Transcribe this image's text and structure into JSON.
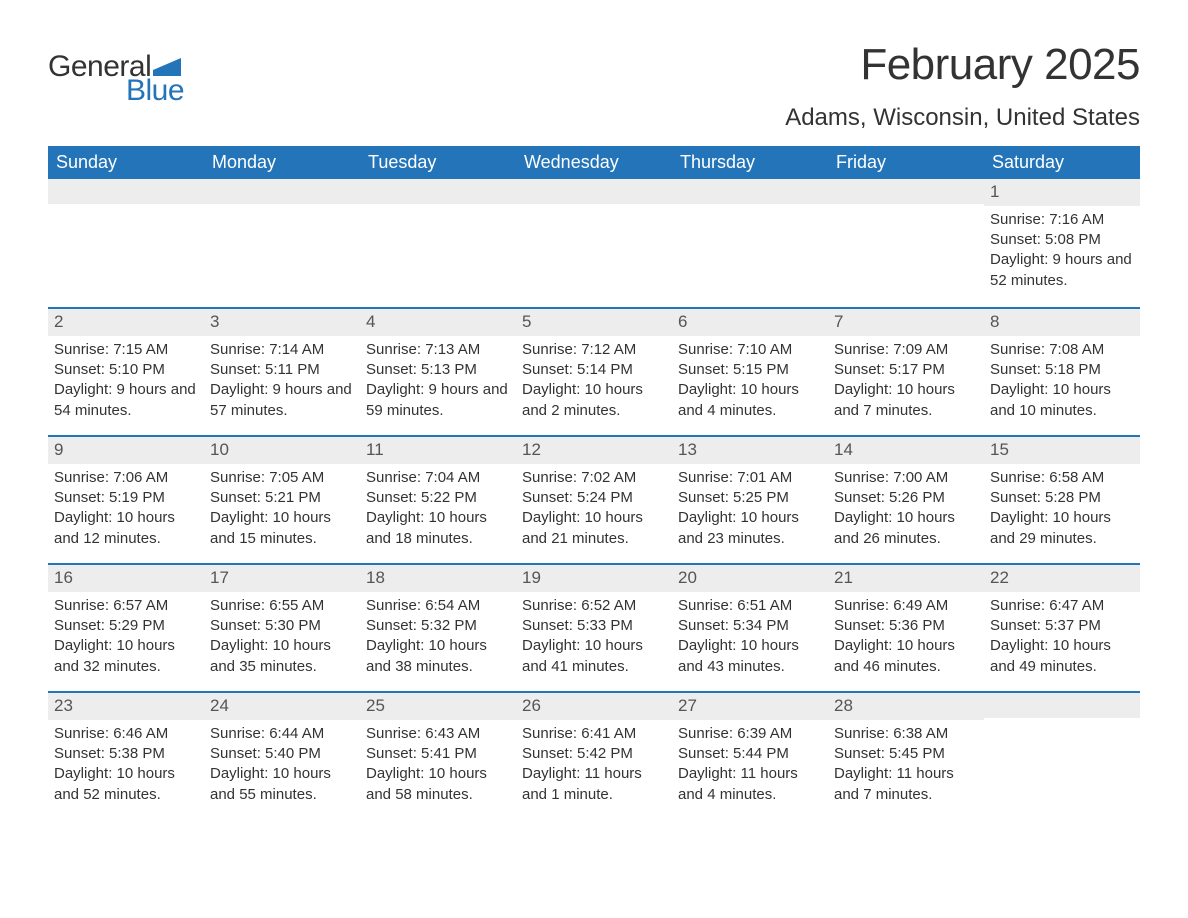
{
  "logo": {
    "text_general": "General",
    "text_blue": "Blue",
    "flag_color": "#2374b8"
  },
  "title": "February 2025",
  "location": "Adams, Wisconsin, United States",
  "colors": {
    "header_bg": "#2374b8",
    "header_text": "#ffffff",
    "row_border": "#2374b8",
    "daynum_bg": "#ededed",
    "text": "#333333"
  },
  "weekdays": [
    "Sunday",
    "Monday",
    "Tuesday",
    "Wednesday",
    "Thursday",
    "Friday",
    "Saturday"
  ],
  "weeks": [
    [
      null,
      null,
      null,
      null,
      null,
      null,
      {
        "n": "1",
        "sunrise": "7:16 AM",
        "sunset": "5:08 PM",
        "daylight": "9 hours and 52 minutes."
      }
    ],
    [
      {
        "n": "2",
        "sunrise": "7:15 AM",
        "sunset": "5:10 PM",
        "daylight": "9 hours and 54 minutes."
      },
      {
        "n": "3",
        "sunrise": "7:14 AM",
        "sunset": "5:11 PM",
        "daylight": "9 hours and 57 minutes."
      },
      {
        "n": "4",
        "sunrise": "7:13 AM",
        "sunset": "5:13 PM",
        "daylight": "9 hours and 59 minutes."
      },
      {
        "n": "5",
        "sunrise": "7:12 AM",
        "sunset": "5:14 PM",
        "daylight": "10 hours and 2 minutes."
      },
      {
        "n": "6",
        "sunrise": "7:10 AM",
        "sunset": "5:15 PM",
        "daylight": "10 hours and 4 minutes."
      },
      {
        "n": "7",
        "sunrise": "7:09 AM",
        "sunset": "5:17 PM",
        "daylight": "10 hours and 7 minutes."
      },
      {
        "n": "8",
        "sunrise": "7:08 AM",
        "sunset": "5:18 PM",
        "daylight": "10 hours and 10 minutes."
      }
    ],
    [
      {
        "n": "9",
        "sunrise": "7:06 AM",
        "sunset": "5:19 PM",
        "daylight": "10 hours and 12 minutes."
      },
      {
        "n": "10",
        "sunrise": "7:05 AM",
        "sunset": "5:21 PM",
        "daylight": "10 hours and 15 minutes."
      },
      {
        "n": "11",
        "sunrise": "7:04 AM",
        "sunset": "5:22 PM",
        "daylight": "10 hours and 18 minutes."
      },
      {
        "n": "12",
        "sunrise": "7:02 AM",
        "sunset": "5:24 PM",
        "daylight": "10 hours and 21 minutes."
      },
      {
        "n": "13",
        "sunrise": "7:01 AM",
        "sunset": "5:25 PM",
        "daylight": "10 hours and 23 minutes."
      },
      {
        "n": "14",
        "sunrise": "7:00 AM",
        "sunset": "5:26 PM",
        "daylight": "10 hours and 26 minutes."
      },
      {
        "n": "15",
        "sunrise": "6:58 AM",
        "sunset": "5:28 PM",
        "daylight": "10 hours and 29 minutes."
      }
    ],
    [
      {
        "n": "16",
        "sunrise": "6:57 AM",
        "sunset": "5:29 PM",
        "daylight": "10 hours and 32 minutes."
      },
      {
        "n": "17",
        "sunrise": "6:55 AM",
        "sunset": "5:30 PM",
        "daylight": "10 hours and 35 minutes."
      },
      {
        "n": "18",
        "sunrise": "6:54 AM",
        "sunset": "5:32 PM",
        "daylight": "10 hours and 38 minutes."
      },
      {
        "n": "19",
        "sunrise": "6:52 AM",
        "sunset": "5:33 PM",
        "daylight": "10 hours and 41 minutes."
      },
      {
        "n": "20",
        "sunrise": "6:51 AM",
        "sunset": "5:34 PM",
        "daylight": "10 hours and 43 minutes."
      },
      {
        "n": "21",
        "sunrise": "6:49 AM",
        "sunset": "5:36 PM",
        "daylight": "10 hours and 46 minutes."
      },
      {
        "n": "22",
        "sunrise": "6:47 AM",
        "sunset": "5:37 PM",
        "daylight": "10 hours and 49 minutes."
      }
    ],
    [
      {
        "n": "23",
        "sunrise": "6:46 AM",
        "sunset": "5:38 PM",
        "daylight": "10 hours and 52 minutes."
      },
      {
        "n": "24",
        "sunrise": "6:44 AM",
        "sunset": "5:40 PM",
        "daylight": "10 hours and 55 minutes."
      },
      {
        "n": "25",
        "sunrise": "6:43 AM",
        "sunset": "5:41 PM",
        "daylight": "10 hours and 58 minutes."
      },
      {
        "n": "26",
        "sunrise": "6:41 AM",
        "sunset": "5:42 PM",
        "daylight": "11 hours and 1 minute."
      },
      {
        "n": "27",
        "sunrise": "6:39 AM",
        "sunset": "5:44 PM",
        "daylight": "11 hours and 4 minutes."
      },
      {
        "n": "28",
        "sunrise": "6:38 AM",
        "sunset": "5:45 PM",
        "daylight": "11 hours and 7 minutes."
      },
      null
    ]
  ],
  "labels": {
    "sunrise": "Sunrise: ",
    "sunset": "Sunset: ",
    "daylight": "Daylight: "
  }
}
